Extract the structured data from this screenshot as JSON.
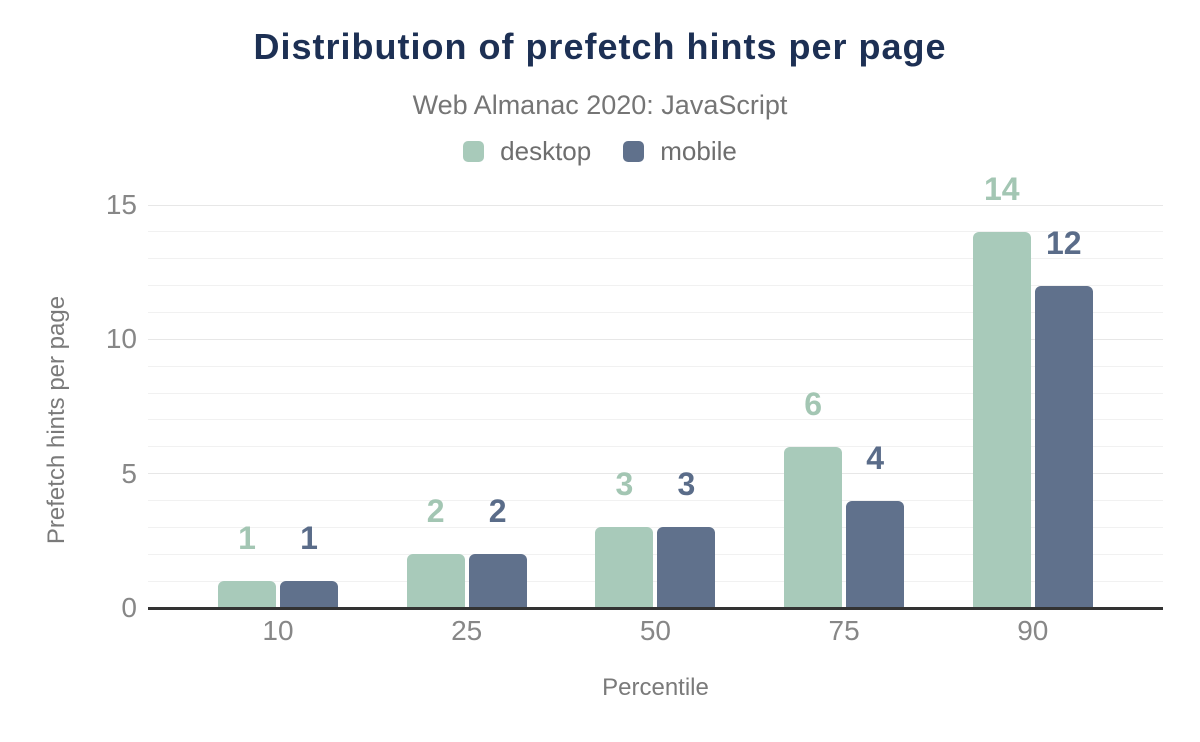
{
  "chart_data": {
    "type": "bar",
    "title": "Distribution of prefetch hints per page",
    "subtitle": "Web Almanac 2020: JavaScript",
    "xlabel": "Percentile",
    "ylabel": "Prefetch hints per page",
    "categories": [
      "10",
      "25",
      "50",
      "75",
      "90"
    ],
    "series": [
      {
        "name": "desktop",
        "color": "#a8caba",
        "label_color": "#a3c6b3",
        "values": [
          1,
          2,
          3,
          6,
          14
        ]
      },
      {
        "name": "mobile",
        "color": "#60718c",
        "label_color": "#5a6c89",
        "values": [
          1,
          2,
          3,
          4,
          12
        ]
      }
    ],
    "ylim": [
      0,
      15
    ],
    "yticks": [
      0,
      5,
      10,
      15
    ],
    "grid": "horizontal-every-1-unit",
    "legend_position": "top-center",
    "colors": {
      "title": "#1d3054",
      "subtitle": "#757575",
      "legend_text": "#6e6e6e",
      "tick_label": "#878787",
      "axis_title": "#7a7a7a",
      "axis_line": "#333333",
      "gridline_minor": "#f1f1f1",
      "gridline_major": "#e7e7e7",
      "background": "#ffffff"
    }
  }
}
